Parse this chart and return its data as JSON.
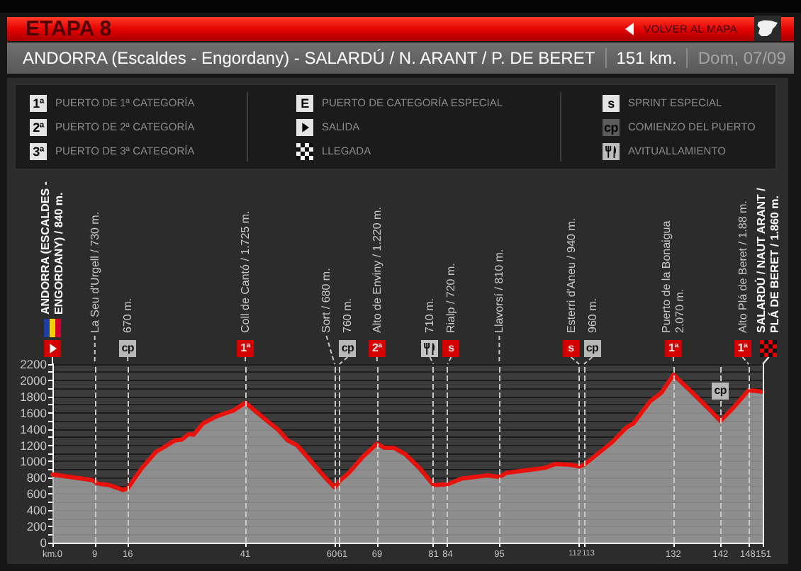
{
  "chart_data": {
    "type": "area",
    "title": "ETAPA 8",
    "subtitle": "ANDORRA (Escaldes - Engordany) - SALARDÚ / N. ARANT / P. DE BERET",
    "x": [
      0,
      8.5,
      9.5,
      12,
      15,
      16,
      19,
      22,
      23.5,
      26,
      27.5,
      29,
      30,
      32,
      35,
      37,
      38.5,
      41,
      45,
      48,
      50,
      52,
      55,
      58,
      60,
      61,
      63,
      66,
      69,
      70.5,
      72.5,
      75,
      78,
      81,
      84,
      87,
      92.5,
      95,
      96.5,
      100.5,
      104.5,
      107,
      110,
      112,
      113,
      116,
      119,
      122,
      123.5,
      127,
      129.5,
      132,
      136,
      140,
      142,
      145,
      148,
      151
    ],
    "series": [
      {
        "color": "#e8120c",
        "values": [
          840,
          770,
          730,
          710,
          650,
          670,
          920,
          1120,
          1170,
          1260,
          1270,
          1340,
          1330,
          1470,
          1560,
          1600,
          1630,
          1725,
          1530,
          1390,
          1260,
          1200,
          1000,
          800,
          680,
          760,
          860,
          1060,
          1220,
          1170,
          1170,
          1090,
          920,
          710,
          720,
          790,
          830,
          810,
          860,
          890,
          920,
          970,
          960,
          940,
          960,
          1100,
          1240,
          1420,
          1470,
          1740,
          1850,
          2070,
          1850,
          1620,
          1500,
          1680,
          1880,
          1860
        ]
      }
    ],
    "xlim": [
      0,
      151
    ],
    "xticks": [
      {
        "value": 0,
        "label": "km.0"
      },
      9,
      16,
      41,
      60,
      61,
      69,
      81,
      84,
      95,
      112,
      113,
      132,
      142,
      148,
      151
    ],
    "ylim": [
      0,
      2200
    ],
    "yticks": [
      0,
      {
        "value": 100,
        "label": null
      },
      200,
      {
        "value": 300,
        "label": null
      },
      400,
      {
        "value": 500,
        "label": null
      },
      600,
      {
        "value": 700,
        "label": null
      },
      800,
      {
        "value": 900,
        "label": null
      },
      1000,
      {
        "value": 1100,
        "label": null
      },
      1200,
      {
        "value": 1300,
        "label": null
      },
      1400,
      {
        "value": 1500,
        "label": null
      },
      1600,
      {
        "value": 1700,
        "label": null
      },
      1800,
      {
        "value": 1900,
        "label": null
      },
      2000,
      {
        "value": 2100,
        "label": null
      },
      2200
    ],
    "grid": "y",
    "ref_lines": [
      {
        "axis": "x",
        "value": 9,
        "label": "La Seu d'Urgell / 730 m.",
        "color": "#c8c8c8",
        "line_style": "dashed"
      },
      {
        "axis": "x",
        "value": 16,
        "label": "670 m.",
        "color": "#c8c8c8",
        "line_style": "dashed"
      },
      {
        "axis": "x",
        "value": 41,
        "label": "Coll de Cantó / 1.725 m.",
        "color": "#c8c8c8",
        "line_style": "dashed"
      },
      {
        "axis": "x",
        "value": 60,
        "label": "Sort / 680 m.",
        "color": "#c8c8c8",
        "line_style": "dashed"
      },
      {
        "axis": "x",
        "value": 61,
        "label": "760 m.",
        "color": "#c8c8c8",
        "line_style": "dashed"
      },
      {
        "axis": "x",
        "value": 69,
        "label": "Alto de Enviny / 1.220 m.",
        "color": "#c8c8c8",
        "line_style": "dashed"
      },
      {
        "axis": "x",
        "value": 81,
        "label": "710 m.",
        "color": "#c8c8c8",
        "line_style": "dashed"
      },
      {
        "axis": "x",
        "value": 84,
        "label": "Rialp / 720 m.",
        "color": "#c8c8c8",
        "line_style": "dashed"
      },
      {
        "axis": "x",
        "value": 95,
        "label": "Llavorsí / 810 m.",
        "color": "#c8c8c8",
        "line_style": "dashed"
      },
      {
        "axis": "x",
        "value": 112,
        "label": "Esterri d'Aneu / 940 m.",
        "color": "#c8c8c8",
        "line_style": "dashed"
      },
      {
        "axis": "x",
        "value": 113,
        "label": "960 m.",
        "color": "#c8c8c8",
        "line_style": "dashed"
      },
      {
        "axis": "x",
        "value": 132,
        "label": "Puerto de la Bonaigua\n2.070 m.",
        "color": "#c8c8c8",
        "line_style": "dashed"
      },
      {
        "axis": "x",
        "value": 142,
        "color": "#c8c8c8",
        "line_style": "dashed"
      },
      {
        "axis": "x",
        "value": 148,
        "label": "Alto Plá de Beret / 1.88 m.",
        "color": "#c8c8c8",
        "line_style": "dashed"
      },
      {
        "axis": "x",
        "value": 151,
        "label": "SALARDÚ / NAUT ARANT /\nPLÁ DE BERET / 1.860 m.",
        "color": "#ffffff",
        "line_style": "solid"
      }
    ],
    "annotations": [
      "VOLVER AL MAPA",
      "151 km.",
      "Dom, 07/09",
      "1ª",
      "PUERTO DE 1ª CATEGORÍA",
      "2ª",
      "PUERTO DE 2ª CATEGORÍA",
      "3ª",
      "PUERTO DE 3ª CATEGORÍA",
      "E",
      "PUERTO DE CATEGORÍA ESPECIAL",
      "SALIDA",
      "LLEGADA",
      "s",
      "SPRINT ESPECIAL",
      "cp",
      "COMIENZO DEL PUERTO",
      "AVITUALLAMIENTO",
      "ANDORRA (ESCALDES -\nENGORDANY) / 840 m.",
      "cp",
      "1ª",
      "cp",
      "2ª",
      "s",
      "s",
      "cp",
      "1ª",
      "1ª",
      {
        "text": "cp",
        "x": 142,
        "y": 1500
      }
    ]
  }
}
